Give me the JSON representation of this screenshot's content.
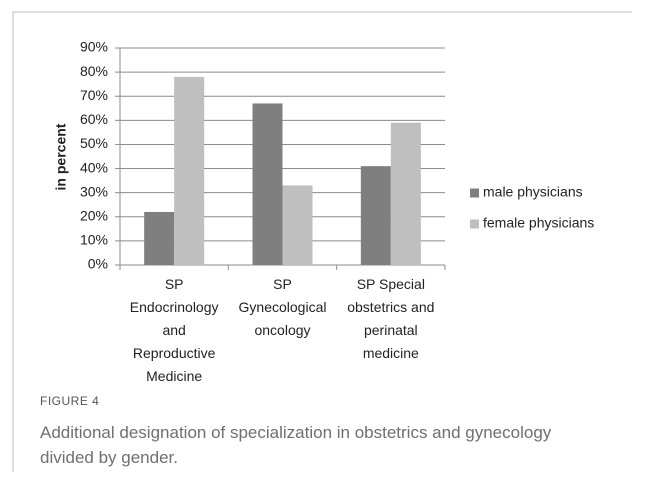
{
  "chart_data": {
    "type": "bar",
    "categories": [
      "SP Endocrinology and Reproductive Medicine",
      "SP Gynecological oncology",
      "SP Special obstetrics and perinatal medicine"
    ],
    "series": [
      {
        "name": "male physicians",
        "color": "#7f7f7f",
        "values": [
          22,
          67,
          41
        ]
      },
      {
        "name": "female physicians",
        "color": "#bfbfbf",
        "values": [
          78,
          33,
          59
        ]
      }
    ],
    "y_label": "in percent",
    "ylim": [
      0,
      90
    ],
    "yticks": [
      {
        "value": 0,
        "label": "0%"
      },
      {
        "value": 10,
        "label": "10%"
      },
      {
        "value": 20,
        "label": "20%"
      },
      {
        "value": 30,
        "label": "30%"
      },
      {
        "value": 40,
        "label": "40%"
      },
      {
        "value": 50,
        "label": "50%"
      },
      {
        "value": 60,
        "label": "60%"
      },
      {
        "value": 70,
        "label": "70%"
      },
      {
        "value": 80,
        "label": "80%"
      },
      {
        "value": 90,
        "label": "90%"
      }
    ],
    "grid": true,
    "legend": "right"
  },
  "caption": {
    "label": "FIGURE 4",
    "text": "Additional designation of specialization in obstetrics and gynecology divided by gender."
  }
}
